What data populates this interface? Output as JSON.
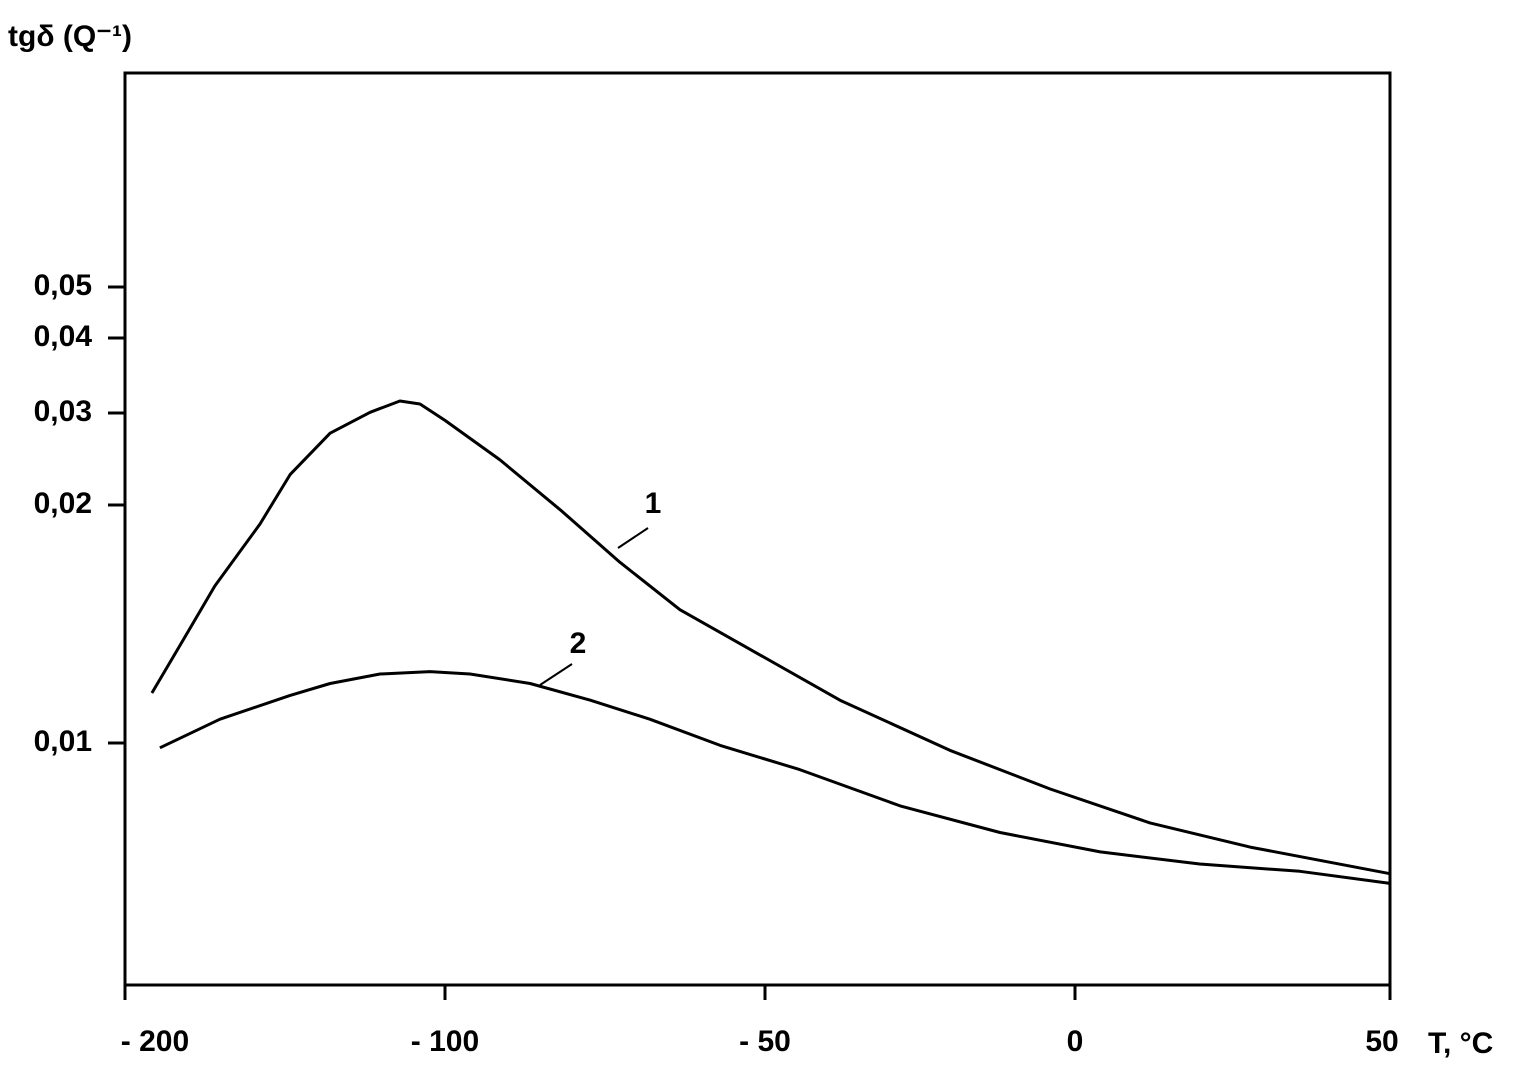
{
  "chart_data": {
    "type": "line",
    "ylabel": "tgδ (Q⁻¹)",
    "xlabel": "T, °C",
    "xlim": [
      -200,
      50
    ],
    "xticks": [
      {
        "value": -200,
        "label": "- 200"
      },
      {
        "value": -100,
        "label": "- 100"
      },
      {
        "value": -50,
        "label": "- 50"
      },
      0,
      50
    ],
    "ylim": [
      0,
      0.09
    ],
    "yticks": [
      {
        "value": 0.01,
        "label": "0,01"
      },
      {
        "value": 0.02,
        "label": "0,02"
      },
      {
        "value": 0.03,
        "label": "0,03"
      },
      {
        "value": 0.04,
        "label": "0,04"
      },
      {
        "value": 0.05,
        "label": "0,05"
      }
    ],
    "series": [
      {
        "name": "1",
        "color": "#000000",
        "x": [
          -191.6,
          -182.8,
          -171.9,
          -157.8,
          -148.4,
          -135.9,
          -123.4,
          -114.1,
          -107.8,
          -100,
          -91.4,
          -82,
          -72.7,
          -63.3,
          -50.8,
          -37.9,
          -20.2,
          -4,
          11.9,
          27.8,
          50
        ],
        "values": [
          0.0121,
          0.0141,
          0.0166,
          0.0192,
          0.0233,
          0.0278,
          0.0301,
          0.0316,
          0.0312,
          0.0292,
          0.0249,
          0.0198,
          0.0176,
          0.0156,
          0.0137,
          0.0118,
          0.0097,
          0.0081,
          0.0067,
          0.0057,
          0.0046
        ]
      },
      {
        "name": "2",
        "color": "#000000",
        "x": [
          -189.1,
          -170.3,
          -148.4,
          -135.9,
          -120.3,
          -104.7,
          -96.1,
          -86.7,
          -77.3,
          -68,
          -57,
          -44.4,
          -28.2,
          -12.1,
          4,
          19.8,
          35.7,
          50
        ],
        "values": [
          0.0098,
          0.011,
          0.012,
          0.0125,
          0.0129,
          0.013,
          0.0129,
          0.0125,
          0.0118,
          0.011,
          0.0099,
          0.0089,
          0.0074,
          0.0063,
          0.0055,
          0.005,
          0.0047,
          0.0042
        ]
      }
    ]
  }
}
